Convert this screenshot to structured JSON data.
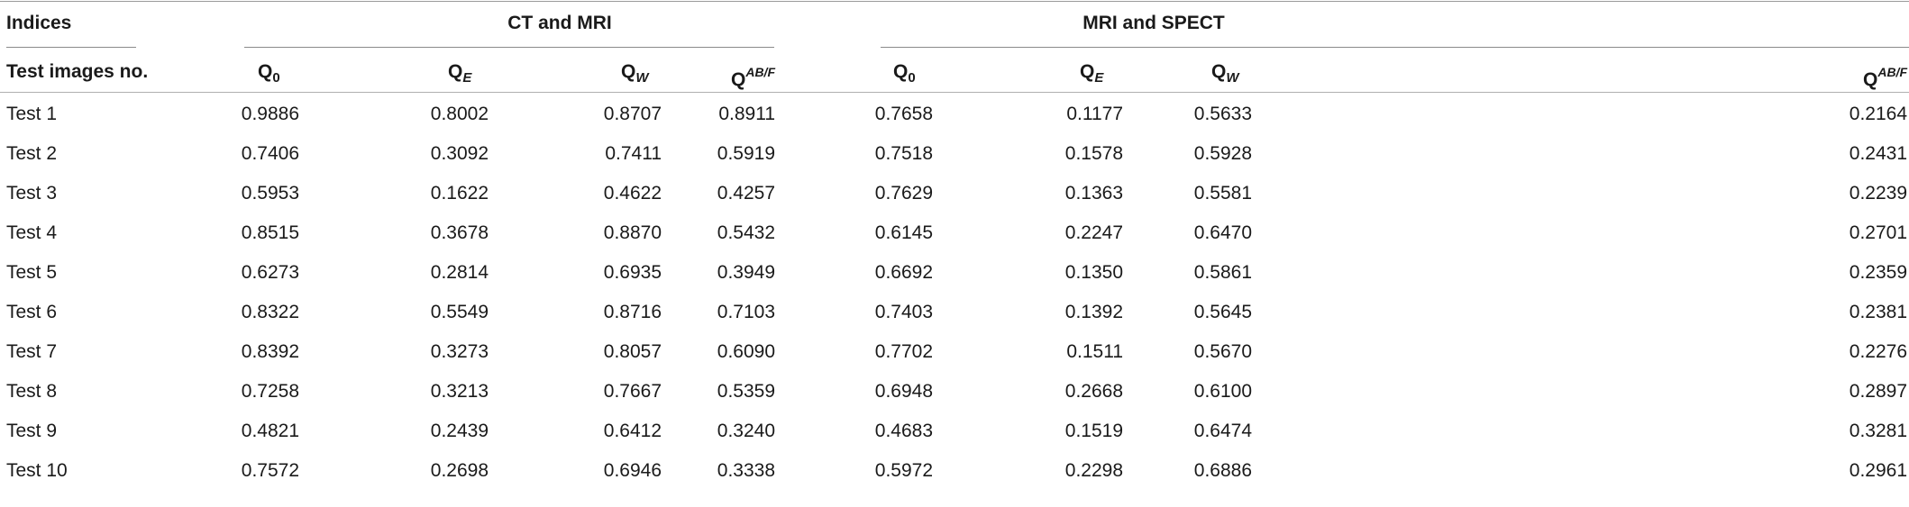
{
  "header": {
    "indices_label": "Indices",
    "group1": "CT and MRI",
    "group2": "MRI and SPECT",
    "row_label_header": "Test images no."
  },
  "metrics": [
    {
      "base": "Q",
      "sub": "0",
      "sup": ""
    },
    {
      "base": "Q",
      "sub": "E",
      "sup": ""
    },
    {
      "base": "Q",
      "sub": "W",
      "sup": ""
    },
    {
      "base": "Q",
      "sub": "",
      "sup": "AB/F"
    },
    {
      "base": "Q",
      "sub": "0",
      "sup": ""
    },
    {
      "base": "Q",
      "sub": "E",
      "sup": ""
    },
    {
      "base": "Q",
      "sub": "W",
      "sup": ""
    },
    {
      "base": "Q",
      "sub": "",
      "sup": "AB/F"
    }
  ],
  "rows": [
    {
      "label": "Test 1",
      "values": [
        "0.9886",
        "0.8002",
        "0.8707",
        "0.8911",
        "0.7658",
        "0.1177",
        "0.5633",
        "0.2164"
      ]
    },
    {
      "label": "Test 2",
      "values": [
        "0.7406",
        "0.3092",
        "0.7411",
        "0.5919",
        "0.7518",
        "0.1578",
        "0.5928",
        "0.2431"
      ]
    },
    {
      "label": "Test 3",
      "values": [
        "0.5953",
        "0.1622",
        "0.4622",
        "0.4257",
        "0.7629",
        "0.1363",
        "0.5581",
        "0.2239"
      ]
    },
    {
      "label": "Test 4",
      "values": [
        "0.8515",
        "0.3678",
        "0.8870",
        "0.5432",
        "0.6145",
        "0.2247",
        "0.6470",
        "0.2701"
      ]
    },
    {
      "label": "Test 5",
      "values": [
        "0.6273",
        "0.2814",
        "0.6935",
        "0.3949",
        "0.6692",
        "0.1350",
        "0.5861",
        "0.2359"
      ]
    },
    {
      "label": "Test 6",
      "values": [
        "0.8322",
        "0.5549",
        "0.8716",
        "0.7103",
        "0.7403",
        "0.1392",
        "0.5645",
        "0.2381"
      ]
    },
    {
      "label": "Test 7",
      "values": [
        "0.8392",
        "0.3273",
        "0.8057",
        "0.6090",
        "0.7702",
        "0.1511",
        "0.5670",
        "0.2276"
      ]
    },
    {
      "label": "Test 8",
      "values": [
        "0.7258",
        "0.3213",
        "0.7667",
        "0.5359",
        "0.6948",
        "0.2668",
        "0.6100",
        "0.2897"
      ]
    },
    {
      "label": "Test 9",
      "values": [
        "0.4821",
        "0.2439",
        "0.6412",
        "0.3240",
        "0.4683",
        "0.1519",
        "0.6474",
        "0.3281"
      ]
    },
    {
      "label": "Test 10",
      "values": [
        "0.7572",
        "0.2698",
        "0.6946",
        "0.3338",
        "0.5972",
        "0.2298",
        "0.6886",
        "0.2961"
      ]
    }
  ]
}
